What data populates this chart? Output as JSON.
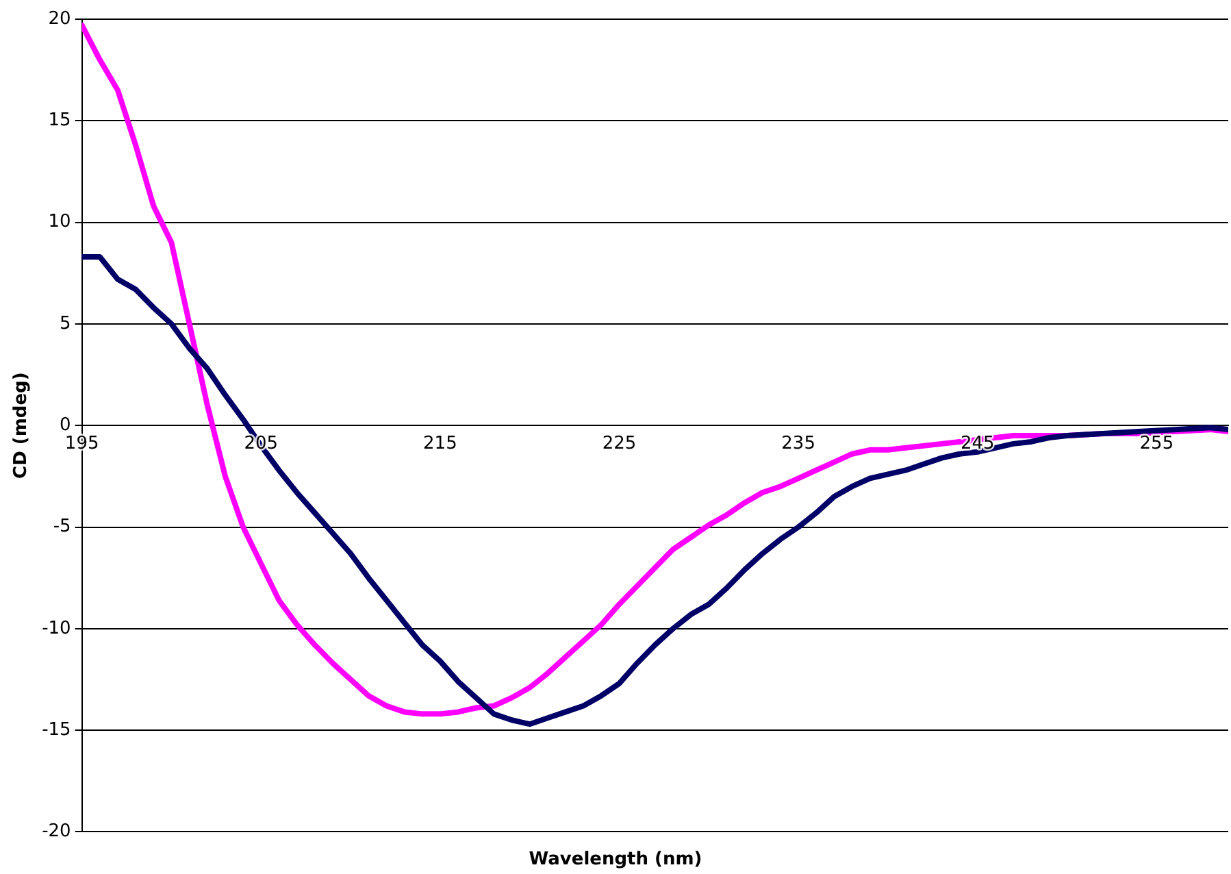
{
  "chart_data": {
    "type": "line",
    "xlabel": "Wavelength (nm)",
    "ylabel": "CD (mdeg)",
    "x": [
      195,
      196,
      197,
      198,
      199,
      200,
      201,
      202,
      203,
      204,
      205,
      206,
      207,
      208,
      209,
      210,
      211,
      212,
      213,
      214,
      215,
      216,
      217,
      218,
      219,
      220,
      221,
      222,
      223,
      224,
      225,
      226,
      227,
      228,
      229,
      230,
      231,
      232,
      233,
      234,
      235,
      236,
      237,
      238,
      239,
      240,
      241,
      242,
      243,
      244,
      245,
      246,
      247,
      248,
      249,
      250,
      252,
      254,
      256,
      258,
      259
    ],
    "series": [
      {
        "color": "#000066",
        "values": [
          8.3,
          8.3,
          7.2,
          6.7,
          5.8,
          5.0,
          3.8,
          2.8,
          1.5,
          0.3,
          -1.0,
          -2.2,
          -3.3,
          -4.3,
          -5.3,
          -6.3,
          -7.5,
          -8.6,
          -9.7,
          -10.8,
          -11.6,
          -12.6,
          -13.4,
          -14.2,
          -14.5,
          -14.7,
          -14.4,
          -14.1,
          -13.8,
          -13.3,
          -12.7,
          -11.7,
          -10.8,
          -10.0,
          -9.3,
          -8.8,
          -8.0,
          -7.1,
          -6.3,
          -5.6,
          -5.0,
          -4.3,
          -3.5,
          -3.0,
          -2.6,
          -2.4,
          -2.2,
          -1.9,
          -1.6,
          -1.4,
          -1.3,
          -1.1,
          -0.9,
          -0.8,
          -0.6,
          -0.5,
          -0.4,
          -0.3,
          -0.2,
          -0.1,
          -0.2
        ]
      },
      {
        "color": "#ff00ff",
        "values": [
          19.7,
          18.0,
          16.5,
          13.8,
          10.8,
          9.0,
          5.0,
          1.0,
          -2.5,
          -5.0,
          -6.8,
          -8.6,
          -9.8,
          -10.8,
          -11.7,
          -12.5,
          -13.3,
          -13.8,
          -14.1,
          -14.2,
          -14.2,
          -14.1,
          -13.9,
          -13.8,
          -13.4,
          -12.9,
          -12.2,
          -11.4,
          -10.6,
          -9.8,
          -8.8,
          -7.9,
          -7.0,
          -6.1,
          -5.5,
          -4.9,
          -4.4,
          -3.8,
          -3.3,
          -3.0,
          -2.6,
          -2.2,
          -1.8,
          -1.4,
          -1.2,
          -1.2,
          -1.1,
          -1.0,
          -0.9,
          -0.8,
          -0.7,
          -0.6,
          -0.5,
          -0.5,
          -0.5,
          -0.5,
          -0.4,
          -0.4,
          -0.3,
          -0.2,
          -0.3
        ]
      }
    ],
    "xlim": [
      195,
      259
    ],
    "xticks": [
      195,
      205,
      215,
      225,
      235,
      245,
      255
    ],
    "ylim": [
      -20,
      20
    ],
    "yticks": [
      -20,
      -15,
      -10,
      -5,
      0,
      5,
      10,
      15,
      20
    ],
    "grid": "y",
    "legend": false,
    "marker": "none",
    "line_style": "solid"
  }
}
